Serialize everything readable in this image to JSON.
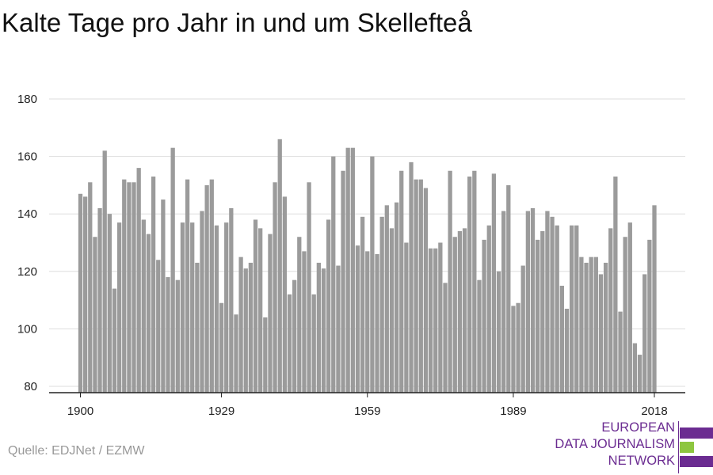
{
  "title": "Kalte Tage pro Jahr in und um Skellefteå",
  "source": "Quelle: EDJNet / EZMW",
  "logo": {
    "lines": [
      "EUROPEAN",
      "DATA JOURNALISM",
      "NETWORK"
    ],
    "colors": {
      "purple": "#6b2c91",
      "green": "#8dc63f"
    }
  },
  "colors": {
    "bar": "#9b9b9b",
    "grid": "#dddddd",
    "axis": "#222222"
  },
  "chart_data": {
    "type": "bar",
    "title": "Kalte Tage pro Jahr in und um Skellefteå",
    "xlabel": "",
    "ylabel": "",
    "x_start": 1900,
    "x_end": 2018,
    "ylim": [
      78,
      181
    ],
    "yticks": [
      80,
      100,
      120,
      140,
      160,
      180
    ],
    "xticks": [
      1900,
      1929,
      1959,
      1989,
      2018
    ],
    "grid": true,
    "legend": "none",
    "values": [
      147,
      146,
      151,
      132,
      142,
      162,
      140,
      114,
      137,
      152,
      151,
      151,
      156,
      138,
      133,
      153,
      124,
      145,
      118,
      163,
      117,
      137,
      152,
      137,
      123,
      141,
      150,
      152,
      136,
      109,
      137,
      142,
      105,
      125,
      121,
      123,
      138,
      135,
      104,
      133,
      151,
      166,
      146,
      112,
      117,
      132,
      127,
      151,
      112,
      123,
      121,
      138,
      160,
      122,
      155,
      163,
      163,
      129,
      139,
      127,
      160,
      126,
      139,
      143,
      135,
      144,
      155,
      130,
      158,
      152,
      152,
      149,
      128,
      128,
      130,
      116,
      155,
      132,
      134,
      135,
      153,
      155,
      117,
      131,
      136,
      154,
      120,
      141,
      150,
      108,
      109,
      122,
      141,
      142,
      131,
      134,
      141,
      139,
      136,
      115,
      107,
      136,
      136,
      125,
      123,
      125,
      125,
      119,
      123,
      135,
      153,
      106,
      132,
      137,
      95,
      91,
      119,
      131,
      143
    ]
  }
}
